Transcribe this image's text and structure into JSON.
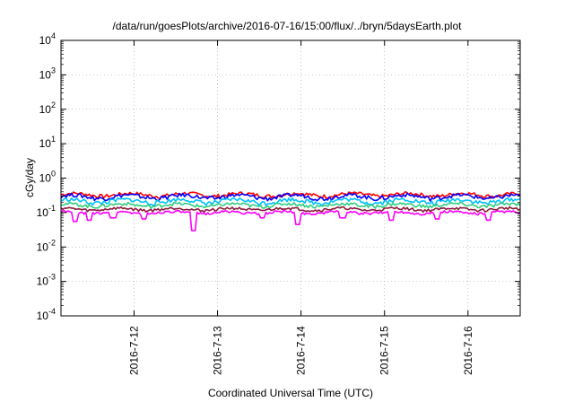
{
  "chart_data": {
    "type": "line",
    "title": "/data/run/goesPlots/archive/2016-07-16/15:00/flux/../bryn/5daysEarth.plot",
    "xlabel": "Coordinated Universal Time (UTC)",
    "ylabel": "cGy/day",
    "yscale": "log",
    "ylim": [
      0.0001,
      10000
    ],
    "xlim": [
      "2016-07-11 03:00",
      "2016-07-16 15:00"
    ],
    "grid": true,
    "x_ticks": [
      {
        "x": "2016-07-12",
        "label": "2016-7-12"
      },
      {
        "x": "2016-07-13",
        "label": "2016-7-13"
      },
      {
        "x": "2016-07-14",
        "label": "2016-7-14"
      },
      {
        "x": "2016-07-15",
        "label": "2016-7-15"
      },
      {
        "x": "2016-07-16",
        "label": "2016-7-16"
      }
    ],
    "y_ticks": [
      {
        "value": 0.0001,
        "base": "10",
        "exp": "-4"
      },
      {
        "value": 0.001,
        "base": "10",
        "exp": "-3"
      },
      {
        "value": 0.01,
        "base": "10",
        "exp": "-2"
      },
      {
        "value": 0.1,
        "base": "10",
        "exp": "-1"
      },
      {
        "value": 1,
        "base": "10",
        "exp": "0"
      },
      {
        "value": 10,
        "base": "10",
        "exp": "1"
      },
      {
        "value": 100,
        "base": "10",
        "exp": "2"
      },
      {
        "value": 1000,
        "base": "10",
        "exp": "3"
      },
      {
        "value": 10000,
        "base": "10",
        "exp": "4"
      }
    ],
    "series": [
      {
        "color": "#ff0000",
        "level": 0.33,
        "amp": 0.17
      },
      {
        "color": "#0000ff",
        "level": 0.29,
        "amp": 0.2
      },
      {
        "color": "#00bfff",
        "level": 0.215,
        "amp": 0.2
      },
      {
        "color": "#32cd80",
        "level": 0.165,
        "amp": 0.16
      },
      {
        "color": "#8b1a3a",
        "level": 0.125,
        "amp": 0.13
      },
      {
        "color": "#ff00ff",
        "level": 0.1,
        "amp": 0.12,
        "dips": [
          {
            "x": "2016-07-11 07:00",
            "value": 0.055
          },
          {
            "x": "2016-07-11 11:00",
            "value": 0.06
          },
          {
            "x": "2016-07-11 18:00",
            "value": 0.07
          },
          {
            "x": "2016-07-12 03:00",
            "value": 0.065
          },
          {
            "x": "2016-07-12 17:00",
            "value": 0.03
          },
          {
            "x": "2016-07-13 13:00",
            "value": 0.07
          },
          {
            "x": "2016-07-13 23:00",
            "value": 0.045
          },
          {
            "x": "2016-07-14 12:00",
            "value": 0.07
          },
          {
            "x": "2016-07-15 02:00",
            "value": 0.06
          },
          {
            "x": "2016-07-15 15:00",
            "value": 0.065
          },
          {
            "x": "2016-07-16 06:00",
            "value": 0.06
          }
        ]
      }
    ]
  }
}
